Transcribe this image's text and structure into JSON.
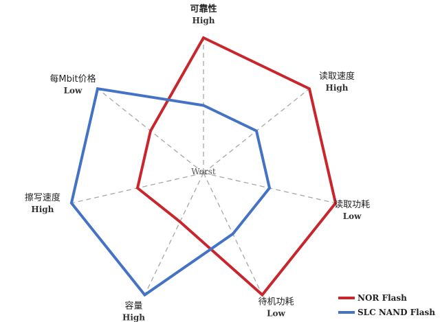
{
  "chart_data": {
    "type": "radar",
    "title": "",
    "center_label": "Worst",
    "axes": [
      {
        "name": "可靠性",
        "level": "High"
      },
      {
        "name": "读取速度",
        "level": "High"
      },
      {
        "name": "读取功耗",
        "level": "Low"
      },
      {
        "name": "待机功耗",
        "level": "Low"
      },
      {
        "name": "容量",
        "level": "High"
      },
      {
        "name": "擦写速度",
        "level": "High"
      },
      {
        "name": "每Mbit价格",
        "level": "Low"
      }
    ],
    "range": [
      0,
      1
    ],
    "grid": "dashed-spokes",
    "legend_position": "bottom-right",
    "series": [
      {
        "name": "NOR Flash",
        "color": "#c8262c",
        "values": [
          1.0,
          1.0,
          1.0,
          1.0,
          0.4,
          0.5,
          0.5
        ]
      },
      {
        "name": "SLC NAND Flash",
        "color": "#4472c4",
        "values": [
          0.5,
          0.5,
          0.5,
          0.5,
          1.0,
          1.0,
          1.0
        ]
      }
    ]
  }
}
